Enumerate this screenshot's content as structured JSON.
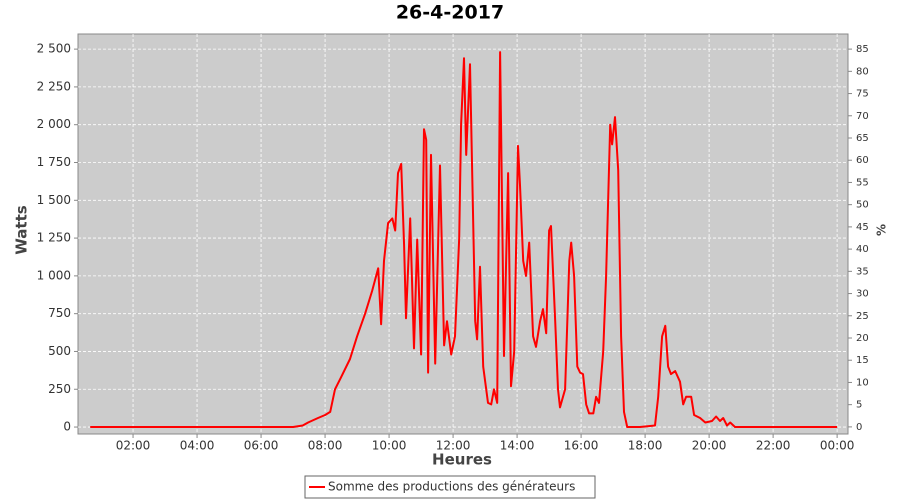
{
  "chart_data": {
    "type": "line",
    "title": "26-4-2017",
    "x_label": "Heures",
    "y_label": "Watts",
    "y2_label": "%",
    "xlim": [
      0.28,
      24.34
    ],
    "xticks": [
      {
        "value": 2,
        "label": "02:00"
      },
      {
        "value": 4,
        "label": "04:00"
      },
      {
        "value": 6,
        "label": "06:00"
      },
      {
        "value": 8,
        "label": "08:00"
      },
      {
        "value": 10,
        "label": "10:00"
      },
      {
        "value": 12,
        "label": "12:00"
      },
      {
        "value": 14,
        "label": "14:00"
      },
      {
        "value": 16,
        "label": "16:00"
      },
      {
        "value": 18,
        "label": "18:00"
      },
      {
        "value": 20,
        "label": "20:00"
      },
      {
        "value": 22,
        "label": "22:00"
      },
      {
        "value": 24,
        "label": "00:00"
      }
    ],
    "ylim": [
      -46,
      2600
    ],
    "yticks": [
      0,
      250,
      500,
      750,
      {
        "value": 1000,
        "label": "1 000"
      },
      {
        "value": 1250,
        "label": "1 250"
      },
      {
        "value": 1500,
        "label": "1 500"
      },
      {
        "value": 1750,
        "label": "1 750"
      },
      {
        "value": 2000,
        "label": "2 000"
      },
      {
        "value": 2250,
        "label": "2 250"
      },
      {
        "value": 2500,
        "label": "2 500"
      }
    ],
    "y2lim": [
      -1.6,
      88.4
    ],
    "y2ticks": [
      0,
      5,
      10,
      15,
      20,
      25,
      30,
      35,
      40,
      45,
      50,
      55,
      60,
      65,
      70,
      75,
      80,
      85
    ],
    "grid": true,
    "legend": "bottom",
    "x": [
      0.66,
      2,
      4,
      6,
      7.0,
      7.3,
      7.47,
      7.78,
      8.0,
      8.16,
      8.31,
      8.5,
      8.78,
      9.0,
      9.25,
      9.47,
      9.66,
      9.75,
      9.84,
      9.97,
      10.1,
      10.19,
      10.28,
      10.38,
      10.47,
      10.53,
      10.66,
      10.78,
      10.88,
      11.0,
      11.09,
      11.16,
      11.22,
      11.31,
      11.44,
      11.59,
      11.72,
      11.81,
      11.94,
      12.06,
      12.19,
      12.25,
      12.34,
      12.41,
      12.53,
      12.69,
      12.75,
      12.84,
      12.94,
      13.09,
      13.19,
      13.28,
      13.38,
      13.47,
      13.59,
      13.72,
      13.81,
      13.91,
      14.03,
      14.09,
      14.19,
      14.28,
      14.38,
      14.5,
      14.59,
      14.72,
      14.81,
      14.91,
      15.0,
      15.06,
      15.19,
      15.28,
      15.34,
      15.5,
      15.63,
      15.69,
      15.78,
      15.88,
      15.97,
      16.06,
      16.16,
      16.25,
      16.38,
      16.47,
      16.56,
      16.69,
      16.78,
      16.91,
      16.97,
      17.06,
      17.16,
      17.25,
      17.34,
      17.44,
      17.84,
      18.31,
      18.41,
      18.53,
      18.63,
      18.72,
      18.81,
      18.94,
      19.09,
      19.19,
      19.28,
      19.44,
      19.53,
      19.72,
      19.88,
      20.09,
      20.22,
      20.34,
      20.44,
      20.56,
      20.66,
      20.81,
      24.0
    ],
    "series": [
      {
        "name": "Somme des productions des  générateurs",
        "color": "#ff0000",
        "values": [
          0,
          0,
          0,
          0,
          0,
          10,
          30,
          60,
          80,
          100,
          250,
          330,
          450,
          600,
          750,
          900,
          1050,
          680,
          1100,
          1350,
          1380,
          1300,
          1680,
          1740,
          1200,
          720,
          1380,
          520,
          1240,
          480,
          1970,
          1900,
          360,
          1800,
          420,
          1730,
          540,
          700,
          480,
          600,
          1250,
          2000,
          2440,
          1800,
          2400,
          700,
          580,
          1060,
          400,
          160,
          150,
          250,
          160,
          2480,
          470,
          1680,
          270,
          500,
          1860,
          1600,
          1100,
          1000,
          1220,
          600,
          530,
          700,
          780,
          620,
          1300,
          1330,
          700,
          250,
          130,
          250,
          1100,
          1220,
          1000,
          400,
          360,
          350,
          150,
          90,
          90,
          200,
          160,
          500,
          1000,
          2000,
          1870,
          2050,
          1700,
          600,
          100,
          0,
          0,
          10,
          200,
          600,
          670,
          400,
          350,
          370,
          300,
          150,
          200,
          200,
          80,
          60,
          30,
          40,
          70,
          40,
          60,
          10,
          30,
          0,
          0
        ]
      }
    ]
  }
}
